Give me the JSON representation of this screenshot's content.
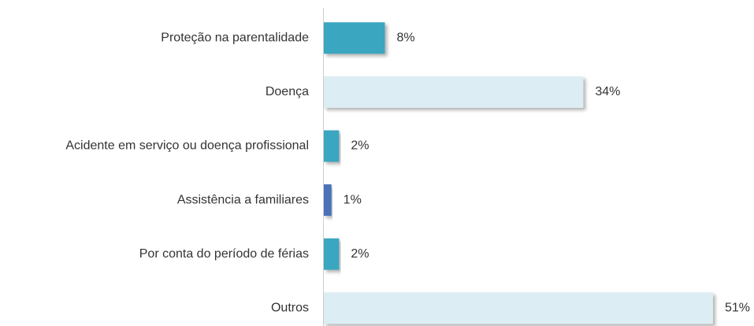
{
  "chart_data": {
    "type": "hbar",
    "categories": [
      "Proteção na parentalidade",
      "Doença",
      "Acidente em serviço ou doença profissional",
      "Assistência a familiares",
      "Por conta do período de férias",
      "Outros"
    ],
    "values": [
      8,
      34,
      2,
      1,
      2,
      51
    ],
    "value_labels": [
      "8%",
      "34%",
      "2%",
      "1%",
      "2%",
      "51%"
    ],
    "colors": [
      "#3ba6bf",
      "#dcedf4",
      "#3ba6bf",
      "#4a72b8",
      "#3ba6bf",
      "#dcedf4"
    ]
  }
}
